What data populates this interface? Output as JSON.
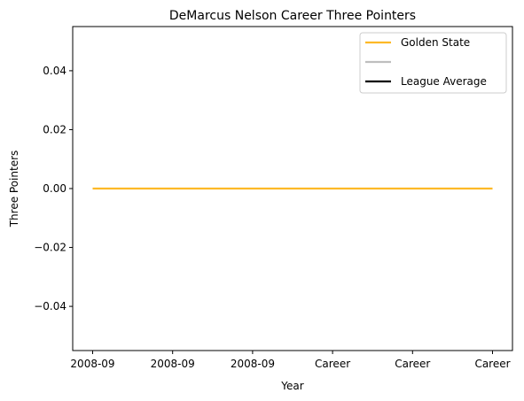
{
  "chart_data": {
    "type": "line",
    "title": "DeMarcus Nelson Career Three Pointers",
    "xlabel": "Year",
    "ylabel": "Three Pointers",
    "categories": [
      "2008-09",
      "2008-09",
      "2008-09",
      "Career",
      "Career",
      "Career"
    ],
    "ylim": [
      -0.055,
      0.055
    ],
    "yticks": [
      -0.04,
      -0.02,
      0.0,
      0.02,
      0.04
    ],
    "ytick_labels": [
      "−0.04",
      "−0.02",
      "0.00",
      "0.02",
      "0.04"
    ],
    "grid": false,
    "legend_position": "top-right",
    "series": [
      {
        "name": "Golden State",
        "color": "#FDB927",
        "values": [
          0,
          0,
          0,
          0,
          0,
          0
        ]
      }
    ],
    "legend": [
      {
        "label": "Golden State",
        "color": "#FDB927"
      },
      {
        "label": "",
        "color": "#BEBEBE"
      },
      {
        "label": "League Average",
        "color": "#000000"
      }
    ]
  }
}
